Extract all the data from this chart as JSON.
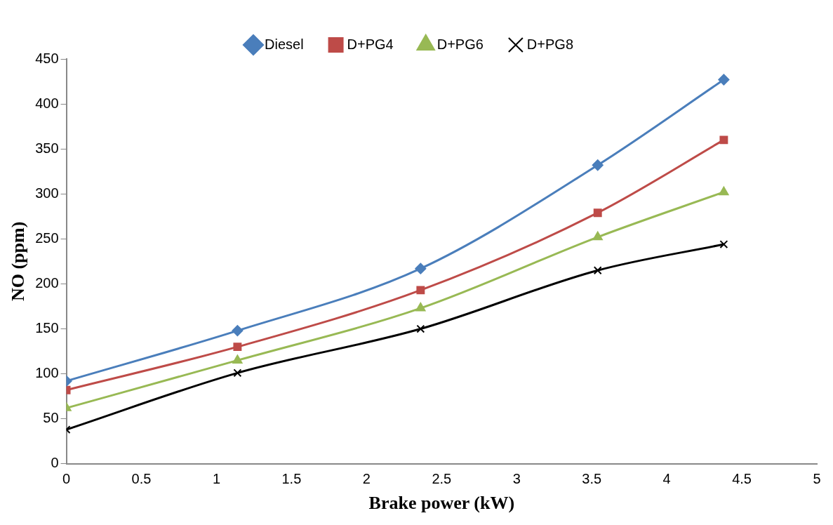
{
  "chart_data": {
    "type": "line",
    "xlabel": "Brake power (kW)",
    "ylabel": "NO (ppm)",
    "x": [
      0,
      1.14,
      2.36,
      3.54,
      4.38
    ],
    "xlim": [
      0,
      5
    ],
    "xticks": [
      0,
      0.5,
      1,
      1.5,
      2,
      2.5,
      3,
      3.5,
      4,
      4.5,
      5
    ],
    "ylim": [
      0,
      450
    ],
    "yticks": [
      0,
      50,
      100,
      150,
      200,
      250,
      300,
      350,
      400,
      450
    ],
    "grid": false,
    "legend": "top",
    "line_style": "solid",
    "series": [
      {
        "name": "Diesel",
        "color": "#4a7ebb",
        "marker": "diamond",
        "values": [
          92,
          148,
          217,
          332,
          427
        ]
      },
      {
        "name": "D+PG4",
        "color": "#be4b48",
        "marker": "square",
        "values": [
          82,
          130,
          193,
          279,
          360
        ]
      },
      {
        "name": "D+PG6",
        "color": "#98b954",
        "marker": "triangle",
        "values": [
          62,
          115,
          173,
          252,
          302
        ]
      },
      {
        "name": "D+PG8",
        "color": "#000000",
        "marker": "cross",
        "values": [
          38,
          101,
          150,
          215,
          244
        ]
      }
    ]
  }
}
